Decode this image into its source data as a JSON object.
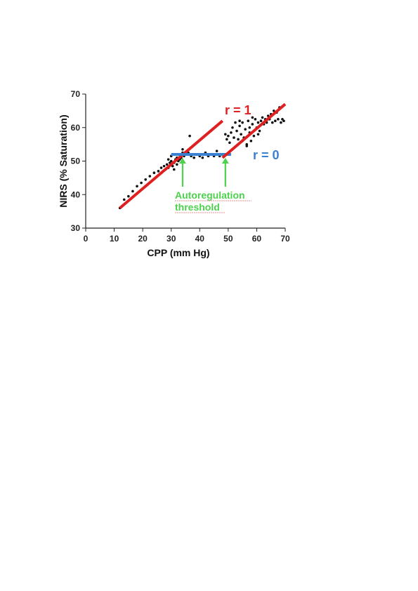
{
  "chart_data": {
    "type": "scatter",
    "xlabel": "CPP (mm  Hg)",
    "ylabel": "NIRS (% Saturation)",
    "xlim": [
      0,
      70
    ],
    "ylim": [
      30,
      70
    ],
    "xticks": [
      0,
      10,
      20,
      30,
      40,
      50,
      60,
      70
    ],
    "yticks": [
      30,
      40,
      50,
      60,
      70
    ],
    "grid": false,
    "points": [
      [
        12.0,
        36.0
      ],
      [
        13.5,
        38.5
      ],
      [
        15.0,
        39.5
      ],
      [
        16.5,
        41.0
      ],
      [
        18.0,
        42.5
      ],
      [
        19.5,
        43.5
      ],
      [
        21.0,
        44.5
      ],
      [
        22.5,
        45.5
      ],
      [
        24.0,
        46.5
      ],
      [
        25.5,
        47.0
      ],
      [
        26.5,
        48.0
      ],
      [
        27.5,
        48.5
      ],
      [
        28.0,
        47.5
      ],
      [
        28.5,
        49.0
      ],
      [
        29.0,
        48.0
      ],
      [
        29.5,
        49.5
      ],
      [
        30.0,
        50.0
      ],
      [
        30.5,
        48.5
      ],
      [
        31.0,
        49.5
      ],
      [
        31.5,
        50.5
      ],
      [
        32.0,
        51.0
      ],
      [
        32.5,
        50.0
      ],
      [
        33.0,
        52.0
      ],
      [
        33.5,
        51.0
      ],
      [
        34.0,
        52.5
      ],
      [
        34.5,
        51.5
      ],
      [
        35.0,
        52.0
      ],
      [
        35.5,
        53.0
      ],
      [
        36.0,
        52.5
      ],
      [
        36.5,
        57.5
      ],
      [
        29.0,
        50.5
      ],
      [
        30.0,
        51.5
      ],
      [
        31.0,
        47.5
      ],
      [
        32.0,
        49.0
      ],
      [
        33.0,
        50.5
      ],
      [
        34.0,
        53.5
      ],
      [
        37.0,
        51.5
      ],
      [
        38.0,
        51.0
      ],
      [
        39.0,
        52.0
      ],
      [
        40.0,
        51.5
      ],
      [
        41.0,
        51.0
      ],
      [
        42.0,
        52.5
      ],
      [
        43.0,
        51.5
      ],
      [
        44.0,
        52.0
      ],
      [
        45.0,
        51.5
      ],
      [
        46.0,
        53.0
      ],
      [
        47.0,
        51.5
      ],
      [
        48.0,
        52.0
      ],
      [
        49.0,
        58.0
      ],
      [
        49.5,
        56.5
      ],
      [
        50.0,
        57.5
      ],
      [
        51.0,
        58.5
      ],
      [
        51.5,
        60.0
      ],
      [
        52.0,
        57.0
      ],
      [
        53.0,
        59.0
      ],
      [
        53.5,
        56.5
      ],
      [
        54.0,
        60.5
      ],
      [
        54.5,
        58.0
      ],
      [
        55.0,
        61.5
      ],
      [
        55.5,
        57.0
      ],
      [
        56.0,
        59.5
      ],
      [
        56.5,
        55.0
      ],
      [
        57.0,
        62.0
      ],
      [
        57.5,
        58.5
      ],
      [
        58.0,
        56.0
      ],
      [
        58.5,
        61.0
      ],
      [
        59.0,
        57.5
      ],
      [
        59.5,
        62.5
      ],
      [
        60.0,
        60.0
      ],
      [
        60.5,
        61.5
      ],
      [
        61.0,
        59.0
      ],
      [
        61.5,
        62.0
      ],
      [
        62.0,
        63.0
      ],
      [
        62.5,
        61.0
      ],
      [
        63.0,
        62.5
      ],
      [
        63.5,
        61.5
      ],
      [
        64.0,
        63.5
      ],
      [
        64.5,
        62.5
      ],
      [
        65.0,
        64.0
      ],
      [
        65.5,
        61.5
      ],
      [
        66.0,
        65.0
      ],
      [
        66.5,
        62.0
      ],
      [
        67.0,
        64.5
      ],
      [
        67.5,
        62.5
      ],
      [
        68.0,
        66.0
      ],
      [
        68.5,
        61.5
      ],
      [
        69.0,
        62.5
      ],
      [
        69.5,
        62.0
      ],
      [
        55.0,
        56.0
      ],
      [
        56.5,
        54.5
      ],
      [
        57.5,
        60.0
      ],
      [
        60.5,
        58.0
      ],
      [
        52.5,
        61.5
      ],
      [
        54.0,
        62.0
      ],
      [
        58.5,
        63.0
      ],
      [
        50.5,
        55.5
      ]
    ],
    "fit_lines": [
      {
        "label": "r = 1",
        "color": "#e02020",
        "x": [
          12,
          48
        ],
        "y": [
          36,
          62
        ]
      },
      {
        "label": "r = 0",
        "color": "#3a80d0",
        "x": [
          30,
          51
        ],
        "y": [
          52,
          52
        ]
      },
      {
        "label": "",
        "color": "#e02020",
        "x": [
          48,
          70
        ],
        "y": [
          51,
          67
        ]
      }
    ],
    "annotations": {
      "r1_label": "r = 1",
      "r0_label": "r = 0",
      "threshold_line1": "Autoregulation",
      "threshold_line2": "threshold",
      "threshold_color": "#4cd24c",
      "threshold_arrows_x": [
        34,
        49
      ]
    }
  }
}
